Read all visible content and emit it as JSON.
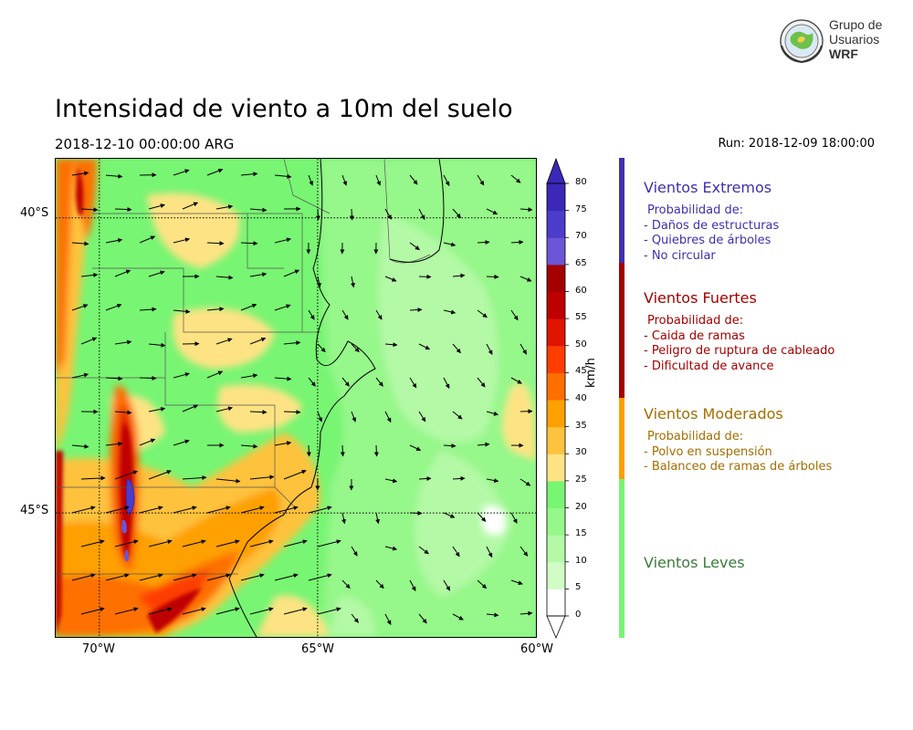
{
  "title": "Intensidad de viento a 10m del suelo",
  "valid_time": "2018-12-10 00:00:00 ARG",
  "run": "Run: 2018-12-09 18:00:00",
  "logo": {
    "line1": "Grupo de",
    "line2": "Usuarios",
    "line3": "WRF"
  },
  "map": {
    "lat_labels": [
      "40°S",
      "45°S"
    ],
    "lon_labels": [
      "70°W",
      "65°W",
      "60°W"
    ],
    "lon_range": [
      -71,
      -60
    ],
    "lat_range": [
      -39,
      -47.1
    ],
    "gridlines_lon": [
      -70,
      -65
    ],
    "gridlines_lat": [
      -40,
      -45
    ]
  },
  "colorbar": {
    "unit": "km/h",
    "ticks": [
      "0",
      "5",
      "10",
      "15",
      "20",
      "25",
      "30",
      "35",
      "40",
      "45",
      "50",
      "55",
      "60",
      "65",
      "70",
      "75",
      "80"
    ],
    "colors": [
      "#ffffff",
      "#d2fcc5",
      "#b4f9a6",
      "#96f78a",
      "#78f573",
      "#fee384",
      "#fec23e",
      "#fea002",
      "#fe6f00",
      "#fe3d00",
      "#e11400",
      "#be0000",
      "#a40000",
      "#6c55d6",
      "#4c3ccc",
      "#3b28b8"
    ],
    "upper_extend": "#3b28b8"
  },
  "categories": [
    {
      "title": "Vientos Extremos",
      "color": "#3f2fb0",
      "text_color": "#3f2fb0",
      "heading": "Probabilidad de:",
      "items": [
        "- Daños de estructuras",
        "- Quiebres de árboles",
        "- No circular"
      ]
    },
    {
      "title": "Vientos Fuertes",
      "color": "#a40000",
      "text_color": "#a40000",
      "heading": "Probabilidad de:",
      "items": [
        "- Caida de ramas",
        "- Peligro de ruptura de cableado",
        "- Dificultad de avance"
      ]
    },
    {
      "title": "Vientos Moderados",
      "color": "#fea002",
      "text_color": "#a36d00",
      "heading": "Probabilidad de:",
      "items": [
        "- Polvo en suspensión",
        "- Balanceo de ramas de árboles"
      ]
    },
    {
      "title": "Vientos Leves",
      "color": "#78f573",
      "text_color": "#3a7d3a",
      "heading": "",
      "items": []
    }
  ]
}
